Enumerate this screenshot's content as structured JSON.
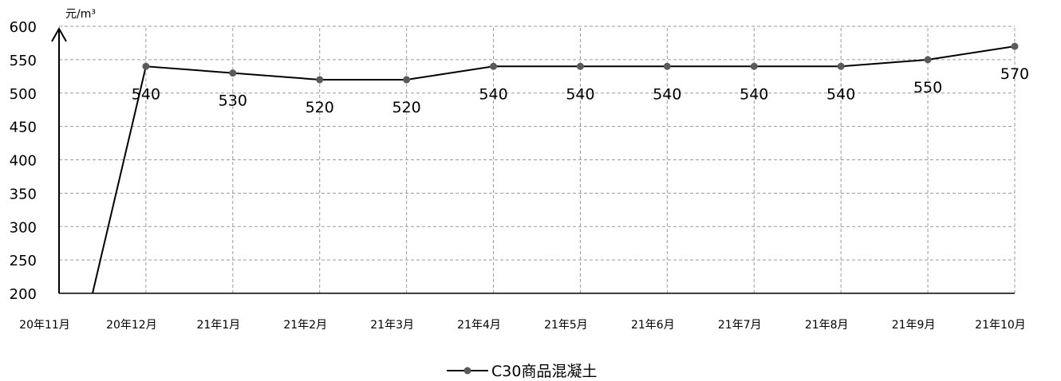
{
  "chart_data": {
    "type": "line",
    "categories": [
      "20年11月",
      "20年12月",
      "21年1月",
      "21年2月",
      "21年3月",
      "21年4月",
      "21年5月",
      "21年6月",
      "21年7月",
      "21年8月",
      "21年9月",
      "21年10月"
    ],
    "series": [
      {
        "name": "C30商品混凝土",
        "values": [
          null,
          540,
          530,
          520,
          520,
          540,
          540,
          540,
          540,
          540,
          550,
          570
        ],
        "labels": [
          "",
          "540",
          "530",
          "520",
          "520",
          "540",
          "540",
          "540",
          "540",
          "540",
          "550",
          "570"
        ]
      }
    ],
    "ylabel": "元/m³",
    "ylim": [
      200,
      600
    ],
    "yticks": [
      200,
      250,
      300,
      350,
      400,
      450,
      500,
      550,
      600
    ],
    "ytick_labels": [
      "200",
      "250",
      "300",
      "350",
      "400",
      "450",
      "500",
      "550",
      "600"
    ],
    "grid": true,
    "legend_position": "bottom",
    "colors": {
      "line": "#000000",
      "marker": "#5a5a5a",
      "grid": "#9a9a9a"
    }
  }
}
